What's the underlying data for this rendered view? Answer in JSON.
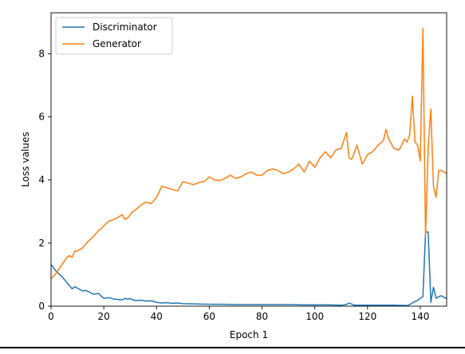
{
  "chart_data": {
    "type": "line",
    "xlabel": "Epoch 1",
    "ylabel": "Loss values",
    "xlim": [
      0,
      150
    ],
    "ylim": [
      0,
      9.3
    ],
    "x_ticks": [
      0,
      20,
      40,
      60,
      80,
      100,
      120,
      140
    ],
    "y_ticks": [
      0,
      2,
      4,
      6,
      8
    ],
    "grid": false,
    "legend_position": "upper left",
    "series": [
      {
        "name": "Discriminator",
        "color": "#1f77b4",
        "x": [
          0,
          2,
          4,
          6,
          7,
          8,
          9,
          12,
          13,
          14,
          16,
          18,
          19,
          20,
          22,
          24,
          26,
          27,
          28,
          29,
          30,
          31,
          32,
          34,
          36,
          38,
          40,
          42,
          44,
          46,
          48,
          50,
          55,
          60,
          65,
          70,
          75,
          80,
          85,
          90,
          95,
          100,
          105,
          110,
          112,
          113,
          115,
          120,
          125,
          130,
          135,
          136,
          137,
          138,
          139,
          140,
          141,
          142,
          143,
          144,
          145,
          146,
          147,
          148,
          149,
          150
        ],
        "y": [
          1.32,
          1.1,
          0.95,
          0.75,
          0.65,
          0.55,
          0.62,
          0.48,
          0.5,
          0.47,
          0.38,
          0.4,
          0.32,
          0.25,
          0.27,
          0.22,
          0.21,
          0.2,
          0.25,
          0.22,
          0.24,
          0.2,
          0.18,
          0.19,
          0.16,
          0.17,
          0.12,
          0.1,
          0.11,
          0.09,
          0.1,
          0.08,
          0.07,
          0.06,
          0.06,
          0.05,
          0.05,
          0.05,
          0.05,
          0.05,
          0.04,
          0.04,
          0.04,
          0.03,
          0.05,
          0.1,
          0.03,
          0.03,
          0.03,
          0.03,
          0.02,
          0.05,
          0.1,
          0.15,
          0.18,
          0.25,
          0.3,
          2.35,
          2.35,
          0.12,
          0.6,
          0.25,
          0.3,
          0.33,
          0.28,
          0.24
        ]
      },
      {
        "name": "Generator",
        "color": "#ff7f0e",
        "x": [
          0,
          1,
          2,
          4,
          6,
          7,
          8,
          9,
          10,
          12,
          13,
          14,
          16,
          18,
          19,
          20,
          22,
          24,
          26,
          27,
          28,
          29,
          30,
          31,
          32,
          34,
          36,
          38,
          40,
          42,
          44,
          46,
          48,
          50,
          52,
          54,
          56,
          58,
          60,
          62,
          64,
          66,
          68,
          70,
          72,
          74,
          76,
          78,
          80,
          82,
          84,
          86,
          88,
          90,
          92,
          94,
          96,
          98,
          100,
          102,
          104,
          106,
          108,
          110,
          112,
          113,
          114,
          116,
          118,
          120,
          122,
          124,
          126,
          127,
          128,
          130,
          132,
          134,
          135,
          136,
          137,
          138,
          139,
          140,
          141,
          142,
          143,
          144,
          145,
          146,
          147,
          148,
          149,
          150
        ],
        "y": [
          0.88,
          0.95,
          1.05,
          1.3,
          1.55,
          1.6,
          1.55,
          1.75,
          1.75,
          1.85,
          1.95,
          2.05,
          2.2,
          2.4,
          2.45,
          2.55,
          2.7,
          2.75,
          2.85,
          2.9,
          2.75,
          2.8,
          2.9,
          3.0,
          3.05,
          3.2,
          3.3,
          3.25,
          3.45,
          3.8,
          3.75,
          3.7,
          3.65,
          3.95,
          3.9,
          3.85,
          3.92,
          3.95,
          4.1,
          4.0,
          3.98,
          4.05,
          4.15,
          4.05,
          4.1,
          4.2,
          4.25,
          4.15,
          4.15,
          4.3,
          4.35,
          4.3,
          4.2,
          4.25,
          4.35,
          4.5,
          4.25,
          4.6,
          4.4,
          4.7,
          4.9,
          4.7,
          4.95,
          5.0,
          5.5,
          4.7,
          4.65,
          5.1,
          4.5,
          4.8,
          4.9,
          5.1,
          5.25,
          5.6,
          5.3,
          5.0,
          4.95,
          5.3,
          5.2,
          5.45,
          6.65,
          5.2,
          5.1,
          4.6,
          8.8,
          2.2,
          5.0,
          6.25,
          3.8,
          3.45,
          4.3,
          4.3,
          4.25,
          4.2
        ]
      }
    ]
  }
}
